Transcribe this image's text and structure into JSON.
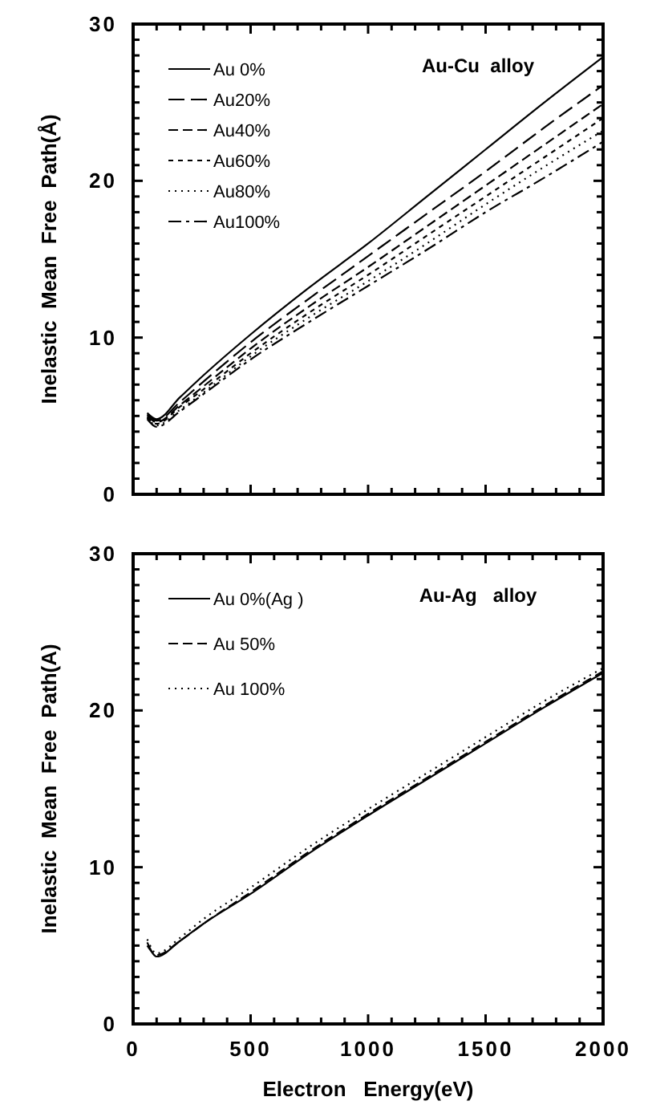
{
  "chart_data": [
    {
      "type": "line",
      "title": "Au-Cu  alloy",
      "ylabel": "Inelastic  Mean  Free  Path(Å)",
      "legend": "top left",
      "tick_labels": "y",
      "x": [
        60,
        100,
        200,
        300,
        500,
        750,
        1000,
        1250,
        1500,
        1750,
        2000
      ],
      "xlim": [
        0,
        2000
      ],
      "ylim": [
        0,
        30
      ],
      "xticks": [
        0,
        {
          "value": 100,
          "label": null
        },
        {
          "value": 200,
          "label": null
        },
        {
          "value": 300,
          "label": null
        },
        {
          "value": 400,
          "label": null
        },
        500,
        {
          "value": 600,
          "label": null
        },
        {
          "value": 700,
          "label": null
        },
        {
          "value": 800,
          "label": null
        },
        {
          "value": 900,
          "label": null
        },
        1000,
        {
          "value": 1100,
          "label": null
        },
        {
          "value": 1200,
          "label": null
        },
        {
          "value": 1300,
          "label": null
        },
        {
          "value": 1400,
          "label": null
        },
        1500,
        {
          "value": 1600,
          "label": null
        },
        {
          "value": 1700,
          "label": null
        },
        {
          "value": 1800,
          "label": null
        },
        {
          "value": 1900,
          "label": null
        },
        2000
      ],
      "yticks": [
        0,
        {
          "value": 1,
          "label": null
        },
        {
          "value": 2,
          "label": null
        },
        {
          "value": 3,
          "label": null
        },
        {
          "value": 4,
          "label": null
        },
        {
          "value": 5,
          "label": null
        },
        {
          "value": 6,
          "label": null
        },
        {
          "value": 7,
          "label": null
        },
        {
          "value": 8,
          "label": null
        },
        {
          "value": 9,
          "label": null
        },
        10,
        {
          "value": 11,
          "label": null
        },
        {
          "value": 12,
          "label": null
        },
        {
          "value": 13,
          "label": null
        },
        {
          "value": 14,
          "label": null
        },
        {
          "value": 15,
          "label": null
        },
        {
          "value": 16,
          "label": null
        },
        {
          "value": 17,
          "label": null
        },
        {
          "value": 18,
          "label": null
        },
        {
          "value": 19,
          "label": null
        },
        20,
        {
          "value": 21,
          "label": null
        },
        {
          "value": 22,
          "label": null
        },
        {
          "value": 23,
          "label": null
        },
        {
          "value": 24,
          "label": null
        },
        {
          "value": 25,
          "label": null
        },
        {
          "value": 26,
          "label": null
        },
        {
          "value": 27,
          "label": null
        },
        {
          "value": 28,
          "label": null
        },
        {
          "value": 29,
          "label": null
        },
        30
      ],
      "series": [
        {
          "name": "Au 0%",
          "color": "#000000",
          "line_style": "solid",
          "values": [
            5.2,
            4.8,
            6.2,
            7.6,
            10.2,
            13.2,
            16.0,
            19.0,
            22.0,
            25.0,
            27.9
          ]
        },
        {
          "name": "Au20%",
          "color": "#000000",
          "line_style": "longdash",
          "values": [
            5.1,
            4.7,
            5.9,
            7.2,
            9.7,
            12.5,
            15.2,
            17.9,
            20.6,
            23.4,
            26.1
          ]
        },
        {
          "name": "Au40%",
          "color": "#000000",
          "line_style": "dashed",
          "values": [
            5.0,
            4.6,
            5.7,
            6.9,
            9.3,
            12.0,
            14.5,
            17.1,
            19.7,
            22.3,
            24.9
          ]
        },
        {
          "name": "Au60%",
          "color": "#000000",
          "line_style": "shortdash",
          "values": [
            4.9,
            4.5,
            5.6,
            6.7,
            9.0,
            11.6,
            14.0,
            16.5,
            19.0,
            21.5,
            24.0
          ]
        },
        {
          "name": "Au80%",
          "color": "#000000",
          "line_style": "dotted",
          "values": [
            4.9,
            4.4,
            5.4,
            6.5,
            8.8,
            11.3,
            13.6,
            16.0,
            18.5,
            20.9,
            23.2
          ]
        },
        {
          "name": "Au100%",
          "color": "#000000",
          "line_style": "dashdot",
          "values": [
            4.8,
            4.3,
            5.3,
            6.4,
            8.6,
            11.0,
            13.3,
            15.6,
            18.0,
            20.2,
            22.5
          ]
        }
      ]
    },
    {
      "type": "line",
      "title": "Au-Ag   alloy",
      "ylabel": "Inelastic  Mean  Free  Path(A)",
      "xlabel": "Electron   Energy(eV)",
      "legend": "top left",
      "x": [
        60,
        100,
        200,
        300,
        500,
        750,
        1000,
        1250,
        1500,
        1750,
        2000
      ],
      "xlim": [
        0,
        2000
      ],
      "ylim": [
        0,
        30
      ],
      "xticks": [
        0,
        {
          "value": 100,
          "label": null
        },
        {
          "value": 200,
          "label": null
        },
        {
          "value": 300,
          "label": null
        },
        {
          "value": 400,
          "label": null
        },
        500,
        {
          "value": 600,
          "label": null
        },
        {
          "value": 700,
          "label": null
        },
        {
          "value": 800,
          "label": null
        },
        {
          "value": 900,
          "label": null
        },
        1000,
        {
          "value": 1100,
          "label": null
        },
        {
          "value": 1200,
          "label": null
        },
        {
          "value": 1300,
          "label": null
        },
        {
          "value": 1400,
          "label": null
        },
        1500,
        {
          "value": 1600,
          "label": null
        },
        {
          "value": 1700,
          "label": null
        },
        {
          "value": 1800,
          "label": null
        },
        {
          "value": 1900,
          "label": null
        },
        2000
      ],
      "yticks": [
        0,
        {
          "value": 1,
          "label": null
        },
        {
          "value": 2,
          "label": null
        },
        {
          "value": 3,
          "label": null
        },
        {
          "value": 4,
          "label": null
        },
        {
          "value": 5,
          "label": null
        },
        {
          "value": 6,
          "label": null
        },
        {
          "value": 7,
          "label": null
        },
        {
          "value": 8,
          "label": null
        },
        {
          "value": 9,
          "label": null
        },
        10,
        {
          "value": 11,
          "label": null
        },
        {
          "value": 12,
          "label": null
        },
        {
          "value": 13,
          "label": null
        },
        {
          "value": 14,
          "label": null
        },
        {
          "value": 15,
          "label": null
        },
        {
          "value": 16,
          "label": null
        },
        {
          "value": 17,
          "label": null
        },
        {
          "value": 18,
          "label": null
        },
        {
          "value": 19,
          "label": null
        },
        20,
        {
          "value": 21,
          "label": null
        },
        {
          "value": 22,
          "label": null
        },
        {
          "value": 23,
          "label": null
        },
        {
          "value": 24,
          "label": null
        },
        {
          "value": 25,
          "label": null
        },
        {
          "value": 26,
          "label": null
        },
        {
          "value": 27,
          "label": null
        },
        {
          "value": 28,
          "label": null
        },
        {
          "value": 29,
          "label": null
        },
        30
      ],
      "series": [
        {
          "name": "Au 0%(Ag )",
          "color": "#000000",
          "line_style": "solid",
          "values": [
            5.2,
            4.3,
            5.3,
            6.4,
            8.3,
            10.9,
            13.3,
            15.6,
            17.9,
            20.2,
            22.4
          ]
        },
        {
          "name": "Au 50%",
          "color": "#000000",
          "line_style": "dashed",
          "values": [
            5.0,
            4.4,
            5.3,
            6.4,
            8.4,
            11.0,
            13.4,
            15.7,
            18.0,
            20.3,
            22.5
          ]
        },
        {
          "name": "Au 100%",
          "color": "#000000",
          "line_style": "dotted",
          "values": [
            5.4,
            4.5,
            5.5,
            6.7,
            8.7,
            11.3,
            13.7,
            16.0,
            18.3,
            20.6,
            22.7
          ]
        }
      ]
    }
  ]
}
